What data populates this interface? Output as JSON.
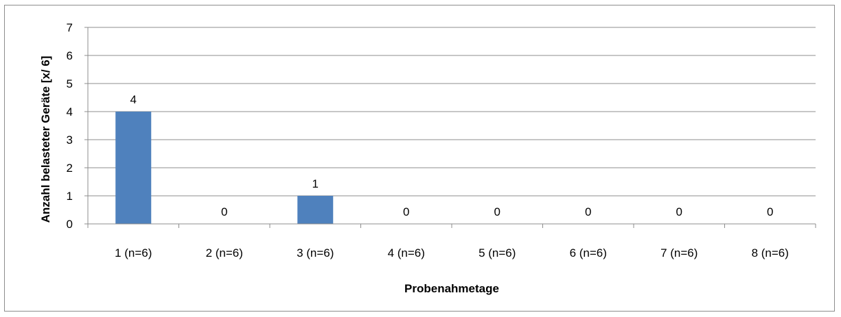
{
  "chart_data": {
    "type": "bar",
    "title": "",
    "xlabel": "Probenahmetage",
    "ylabel": "Anzahl belasteter Geräte [x/ 6]",
    "categories": [
      "1 (n=6)",
      "2 (n=6)",
      "3 (n=6)",
      "4 (n=6)",
      "5 (n=6)",
      "6 (n=6)",
      "7 (n=6)",
      "8 (n=6)"
    ],
    "values": [
      4,
      0,
      1,
      0,
      0,
      0,
      0,
      0
    ],
    "ylim": [
      0,
      7
    ],
    "yticks": [
      "0",
      "1",
      "2",
      "3",
      "4",
      "5",
      "6",
      "7"
    ],
    "data_labels": [
      "4",
      "0",
      "1",
      "0",
      "0",
      "0",
      "0",
      "0"
    ],
    "grid": true,
    "legend": "none",
    "bar_color": "#4f81bd",
    "grid_color": "#8c8c8c"
  }
}
